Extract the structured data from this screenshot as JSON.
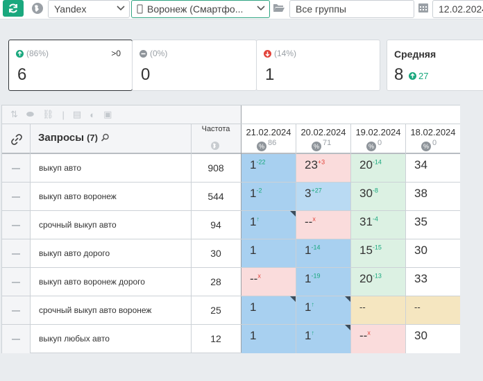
{
  "toolbar": {
    "search_engine": "Yandex",
    "region": "Воронеж (Смартфо...",
    "group": "Все группы",
    "date": "12.02.2024"
  },
  "cards": [
    {
      "pct": "(86%)",
      "value": "6",
      "extra": ">0"
    },
    {
      "pct": "(0%)",
      "value": "0"
    },
    {
      "pct": "(14%)",
      "value": "1"
    }
  ],
  "average": {
    "title": "Средняя",
    "value": "8",
    "change": "27"
  },
  "table": {
    "queries_label": "Запросы",
    "queries_count": "(7)",
    "frequency_label": "Частота",
    "dates": [
      {
        "date": "21.02.2024",
        "pct": "86"
      },
      {
        "date": "20.02.2024",
        "pct": "71"
      },
      {
        "date": "19.02.2024",
        "pct": "0"
      },
      {
        "date": "18.02.2024",
        "pct": "0"
      }
    ],
    "rows": [
      {
        "query": "выкуп авто",
        "freq": "908",
        "cells": [
          {
            "v": "1",
            "c": "-22"
          },
          {
            "v": "23",
            "c": "+3"
          },
          {
            "v": "20",
            "c": "-14"
          },
          {
            "v": "34",
            "c": ""
          }
        ]
      },
      {
        "query": "выкуп авто воронеж",
        "freq": "544",
        "cells": [
          {
            "v": "1",
            "c": "-2"
          },
          {
            "v": "3",
            "c": "+27"
          },
          {
            "v": "30",
            "c": "-8"
          },
          {
            "v": "38",
            "c": ""
          }
        ]
      },
      {
        "query": "срочный выкуп авто",
        "freq": "94",
        "cells": [
          {
            "v": "1",
            "c": "↑"
          },
          {
            "v": "--",
            "c": "x"
          },
          {
            "v": "31",
            "c": "-4"
          },
          {
            "v": "35",
            "c": ""
          }
        ]
      },
      {
        "query": "выкуп авто дорого",
        "freq": "30",
        "cells": [
          {
            "v": "1",
            "c": ""
          },
          {
            "v": "1",
            "c": "-14"
          },
          {
            "v": "15",
            "c": "-15"
          },
          {
            "v": "30",
            "c": ""
          }
        ]
      },
      {
        "query": "выкуп авто воронеж дорого",
        "freq": "28",
        "cells": [
          {
            "v": "--",
            "c": "x"
          },
          {
            "v": "1",
            "c": "-19"
          },
          {
            "v": "20",
            "c": "-13"
          },
          {
            "v": "33",
            "c": ""
          }
        ]
      },
      {
        "query": "срочный выкуп авто воронеж",
        "freq": "25",
        "cells": [
          {
            "v": "1",
            "c": ""
          },
          {
            "v": "1",
            "c": "↑"
          },
          {
            "v": "--",
            "c": ""
          },
          {
            "v": "--",
            "c": ""
          }
        ]
      },
      {
        "query": "выкуп любых авто",
        "freq": "12",
        "cells": [
          {
            "v": "1",
            "c": ""
          },
          {
            "v": "1",
            "c": "↑"
          },
          {
            "v": "--",
            "c": "x"
          },
          {
            "v": "30",
            "c": ""
          }
        ]
      }
    ]
  },
  "colors": {
    "accent": "#1aa87e",
    "down": "#e2433a",
    "top_blue": "#a8d0f0"
  }
}
